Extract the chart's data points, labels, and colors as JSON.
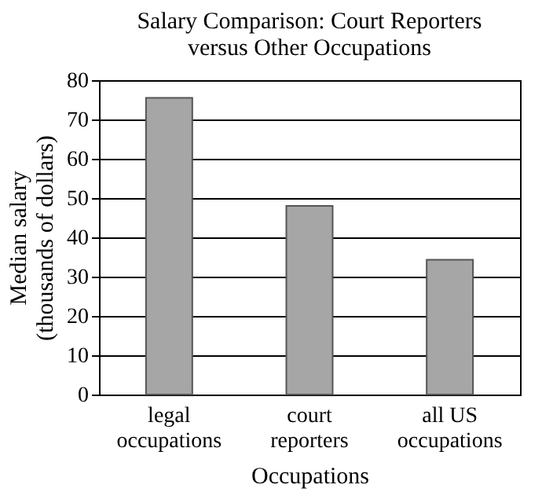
{
  "chart_data": {
    "type": "bar",
    "title": "Salary Comparison: Court Reporters versus Other Occupations",
    "xlabel": "Occupations",
    "ylabel": "Median salary (thousands of dollars)",
    "categories": [
      "legal occupations",
      "court reporters",
      "all US occupations"
    ],
    "values": [
      75.5,
      48,
      34.3
    ],
    "color": "#a6a6a6",
    "ylim": [
      0,
      80
    ],
    "yticks": [
      0,
      10,
      20,
      30,
      40,
      50,
      60,
      70,
      80
    ],
    "grid": "y"
  }
}
